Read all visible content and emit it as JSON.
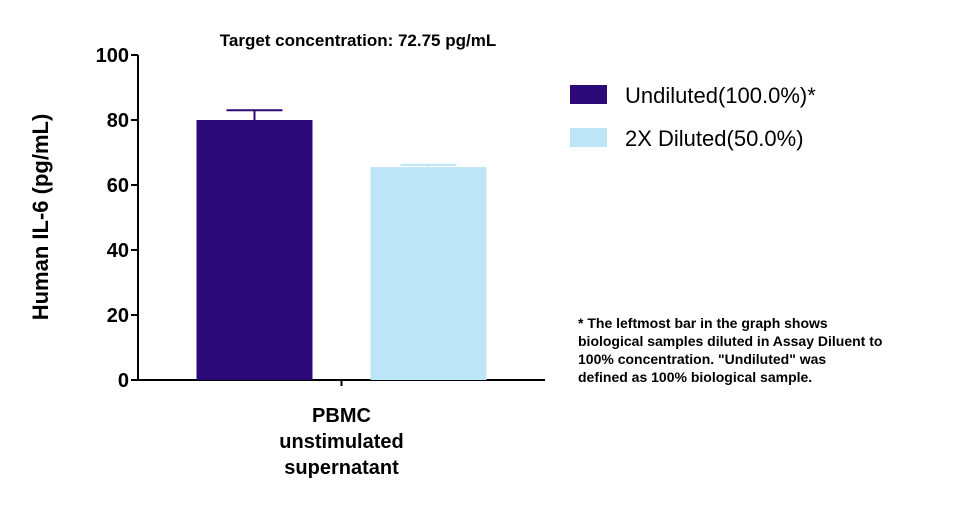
{
  "chart_data": {
    "type": "bar",
    "title": "Target concentration: 72.75 pg/mL",
    "y_label": "Human IL-6 (pg/mL)",
    "categories": [
      "PBMC unstimulated supernatant"
    ],
    "series": [
      {
        "name": "Undiluted(100.0%)*",
        "color": "#2b0a78",
        "values": [
          80
        ],
        "errors": [
          3
        ]
      },
      {
        "name": "2X Diluted(50.0%)",
        "color": "#bde5f8",
        "values": [
          65.5
        ],
        "errors": [
          0.7
        ]
      }
    ],
    "ylim": [
      0,
      100
    ],
    "yticks": [
      0,
      20,
      40,
      60,
      80,
      100
    ],
    "footnote": [
      "* The leftmost bar in the graph shows",
      "biological samples diluted in Assay Diluent to",
      "100% concentration. \"Undiluted\" was",
      "defined as 100% biological sample."
    ]
  }
}
